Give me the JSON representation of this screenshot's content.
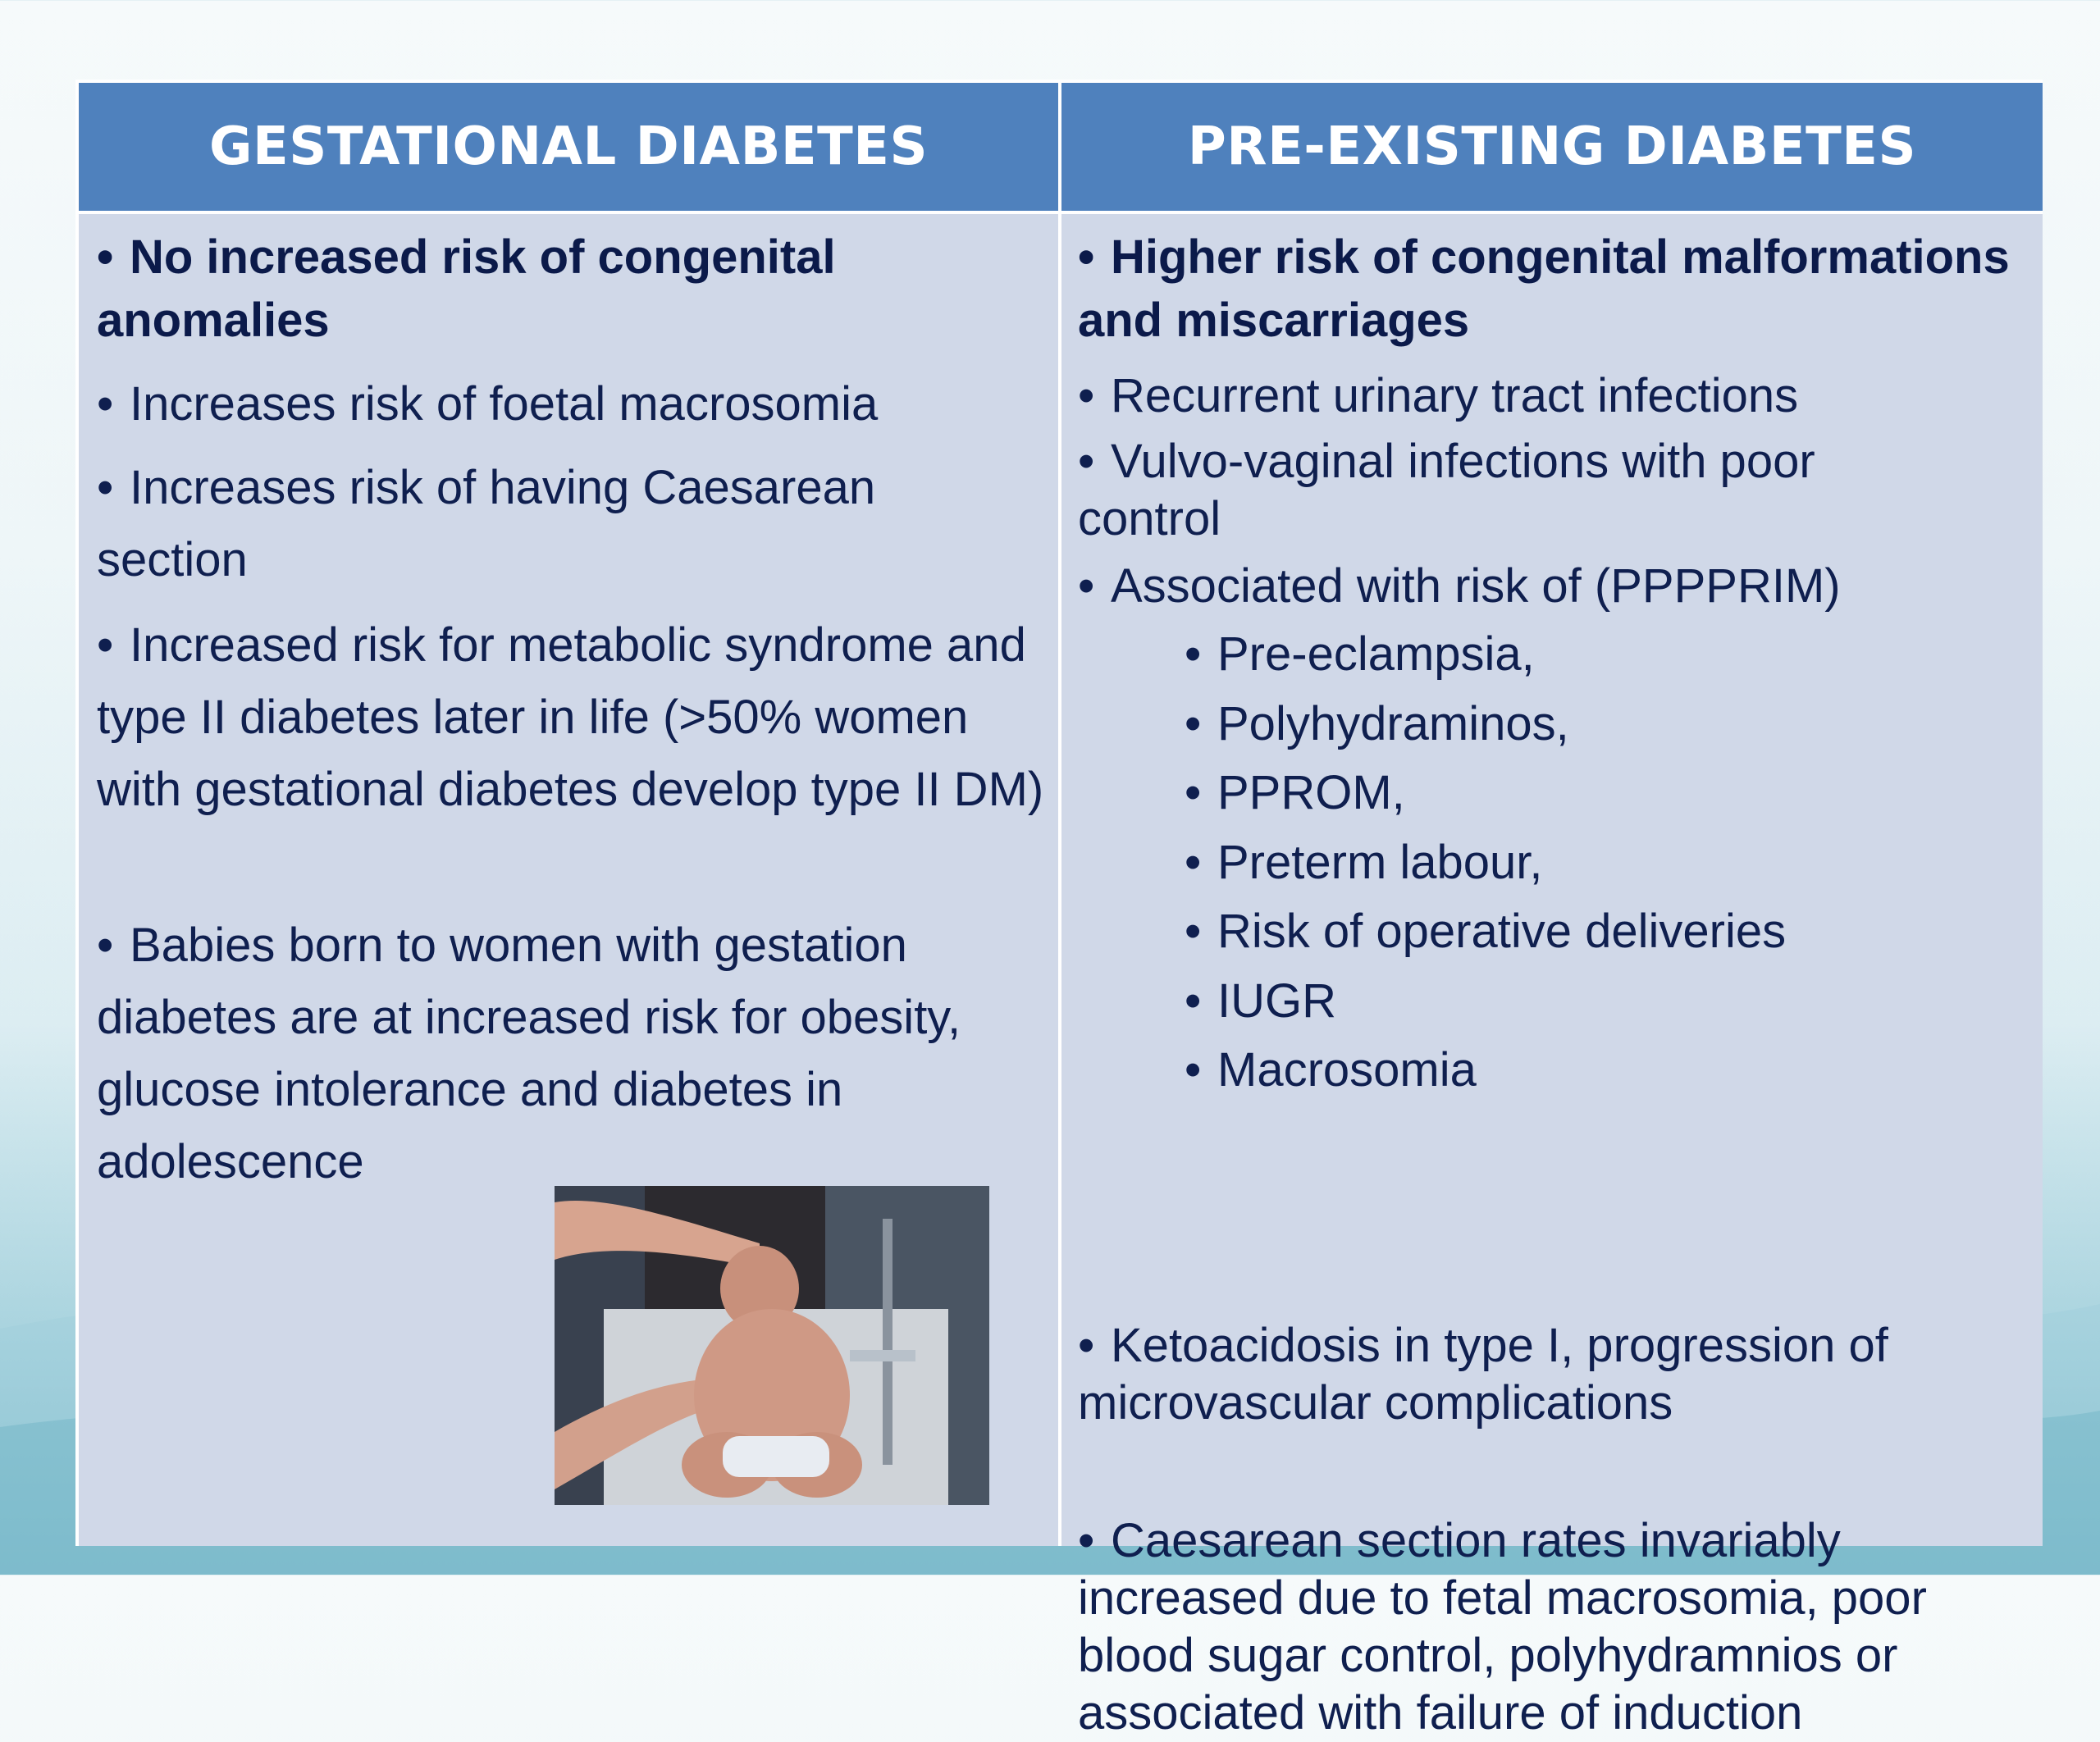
{
  "headers": {
    "left": "GESTATIONAL DIABETES",
    "right": "PRE-EXISTING DIABETES"
  },
  "left_column": {
    "items": [
      "No increased risk of congenital anomalies",
      "Increases risk of foetal macrosomia",
      "Increases risk of having Caesarean section",
      "Increased risk for metabolic syndrome and type II diabetes later in life (>50% women with gestational diabetes develop type II DM)",
      "Babies born to women with gestation diabetes are at increased risk for obesity, glucose intolerance and diabetes in adolescence"
    ]
  },
  "right_column": {
    "items": [
      "Higher risk of congenital malformations and miscarriages",
      "Recurrent urinary tract infections",
      "Vulvo-vaginal infections with poor control",
      "Associated with risk of  (PPPPRIM)"
    ],
    "sub_items": [
      "Pre-eclampsia,",
      "Polyhydraminos,",
      "PPROM,",
      "Preterm labour,",
      "Risk of operative deliveries",
      "IUGR",
      "Macrosomia"
    ],
    "later_items": [
      "Ketoacidosis in type I, progression of microvascular complications",
      "Caesarean section rates invariably increased due to fetal macrosomia, poor blood sugar control, polyhydramnios or associated with failure of induction"
    ]
  },
  "bullet_char": "•",
  "colors": {
    "header_bg": "#4f81bd",
    "body_bg": "#d0d8e8",
    "text": "#0f1f4f"
  }
}
